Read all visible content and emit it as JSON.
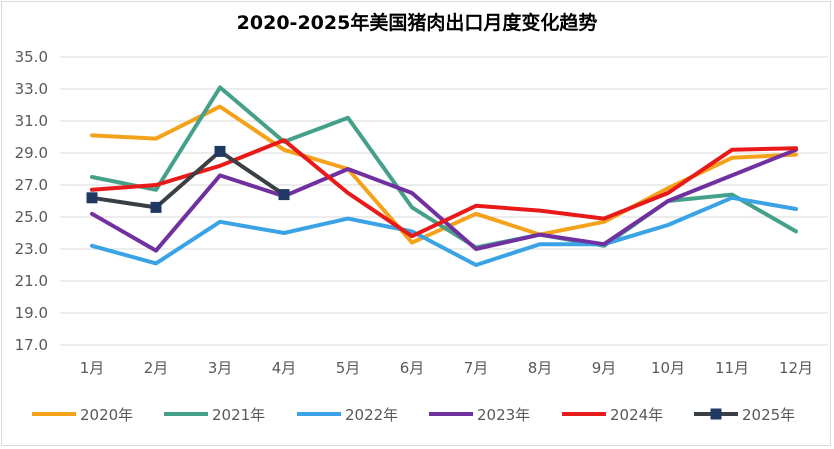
{
  "chart_data": {
    "type": "line",
    "title": "2020-2025年美国猪肉出口月度变化趋势",
    "xlabel": "",
    "ylabel": "",
    "categories": [
      "1月",
      "2月",
      "3月",
      "4月",
      "5月",
      "6月",
      "7月",
      "8月",
      "9月",
      "10月",
      "11月",
      "12月"
    ],
    "ylim": [
      17,
      35
    ],
    "yticks": [
      "17.0",
      "19.0",
      "21.0",
      "23.0",
      "25.0",
      "27.0",
      "29.0",
      "31.0",
      "33.0",
      "35.0"
    ],
    "grid": true,
    "legend_position": "bottom",
    "series": [
      {
        "name": "2020年",
        "color": "#f5a21b",
        "marker": "none",
        "values": [
          30.1,
          29.9,
          31.9,
          29.2,
          28.0,
          23.4,
          25.2,
          23.9,
          24.7,
          26.8,
          28.7,
          28.9
        ]
      },
      {
        "name": "2021年",
        "color": "#45a08a",
        "marker": "none",
        "values": [
          27.5,
          26.7,
          33.1,
          29.7,
          31.2,
          25.6,
          23.1,
          23.9,
          23.2,
          26.0,
          26.4,
          24.1
        ]
      },
      {
        "name": "2022年",
        "color": "#3aa3e6",
        "marker": "none",
        "values": [
          23.2,
          22.1,
          24.7,
          24.0,
          24.9,
          24.1,
          22.0,
          23.3,
          23.3,
          24.5,
          26.2,
          25.5
        ]
      },
      {
        "name": "2023年",
        "color": "#7030a0",
        "marker": "none",
        "values": [
          25.2,
          22.9,
          27.6,
          26.3,
          28.0,
          26.5,
          23.0,
          23.9,
          23.3,
          26.0,
          27.6,
          29.2
        ]
      },
      {
        "name": "2024年",
        "color": "#e81919",
        "marker": "none",
        "values": [
          26.7,
          27.0,
          28.2,
          29.8,
          26.5,
          23.8,
          25.7,
          25.4,
          24.9,
          26.5,
          29.2,
          29.3
        ]
      },
      {
        "name": "2025年",
        "color": "#3a3f44",
        "marker": "square",
        "marker_color": "#1f3864",
        "values": [
          26.2,
          25.6,
          29.1,
          26.4,
          null,
          null,
          null,
          null,
          null,
          null,
          null,
          null
        ]
      }
    ]
  }
}
